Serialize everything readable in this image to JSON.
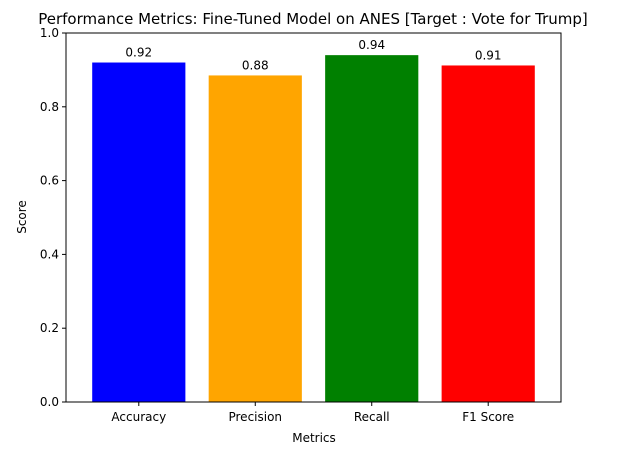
{
  "chart_data": {
    "type": "bar",
    "title": "Performance Metrics: Fine-Tuned Model on ANES [Target : Vote for Trump]",
    "xlabel": "Metrics",
    "ylabel": "Score",
    "ylim": [
      0,
      1.0
    ],
    "yticks": [
      0.0,
      0.2,
      0.4,
      0.6,
      0.8,
      1.0
    ],
    "ytick_labels": [
      "0.0",
      "0.2",
      "0.4",
      "0.6",
      "0.8",
      "1.0"
    ],
    "categories": [
      "Accuracy",
      "Precision",
      "Recall",
      "F1 Score"
    ],
    "values": [
      0.92,
      0.885,
      0.94,
      0.912
    ],
    "value_labels": [
      "0.92",
      "0.88",
      "0.94",
      "0.91"
    ],
    "colors": [
      "#0000ff",
      "#ffa500",
      "#008000",
      "#ff0000"
    ],
    "grid": false,
    "legend": "none"
  }
}
